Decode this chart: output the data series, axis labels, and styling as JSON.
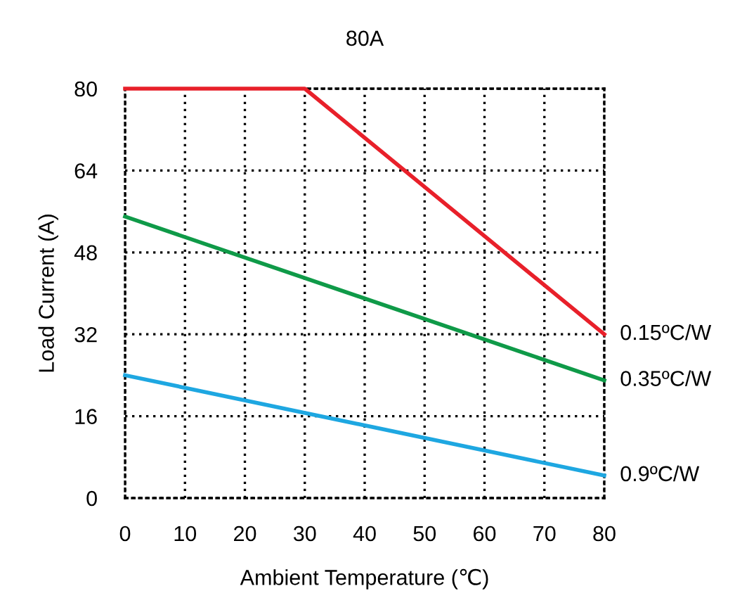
{
  "chart_data": {
    "type": "line",
    "title": "80A",
    "xlabel": "Ambient Temperature (℃)",
    "ylabel": "Load Current (A)",
    "xlim": [
      0,
      80
    ],
    "xticks": [
      0,
      10,
      20,
      30,
      40,
      50,
      60,
      70,
      80
    ],
    "ylim": [
      0,
      80
    ],
    "yticks": [
      0,
      16,
      32,
      48,
      64,
      80
    ],
    "grid": true,
    "marker": "none",
    "line_style": "solid",
    "series": [
      {
        "name": "0.15ºC/W",
        "color": "#e8202a",
        "x": [
          0,
          30,
          80
        ],
        "values": [
          80,
          80,
          32
        ]
      },
      {
        "name": "0.35ºC/W",
        "color": "#0f9a48",
        "x": [
          0,
          80
        ],
        "values": [
          55,
          23
        ]
      },
      {
        "name": "0.9ºC/W",
        "color": "#1ea7e1",
        "x": [
          0,
          80
        ],
        "values": [
          24,
          4.4
        ]
      }
    ]
  }
}
